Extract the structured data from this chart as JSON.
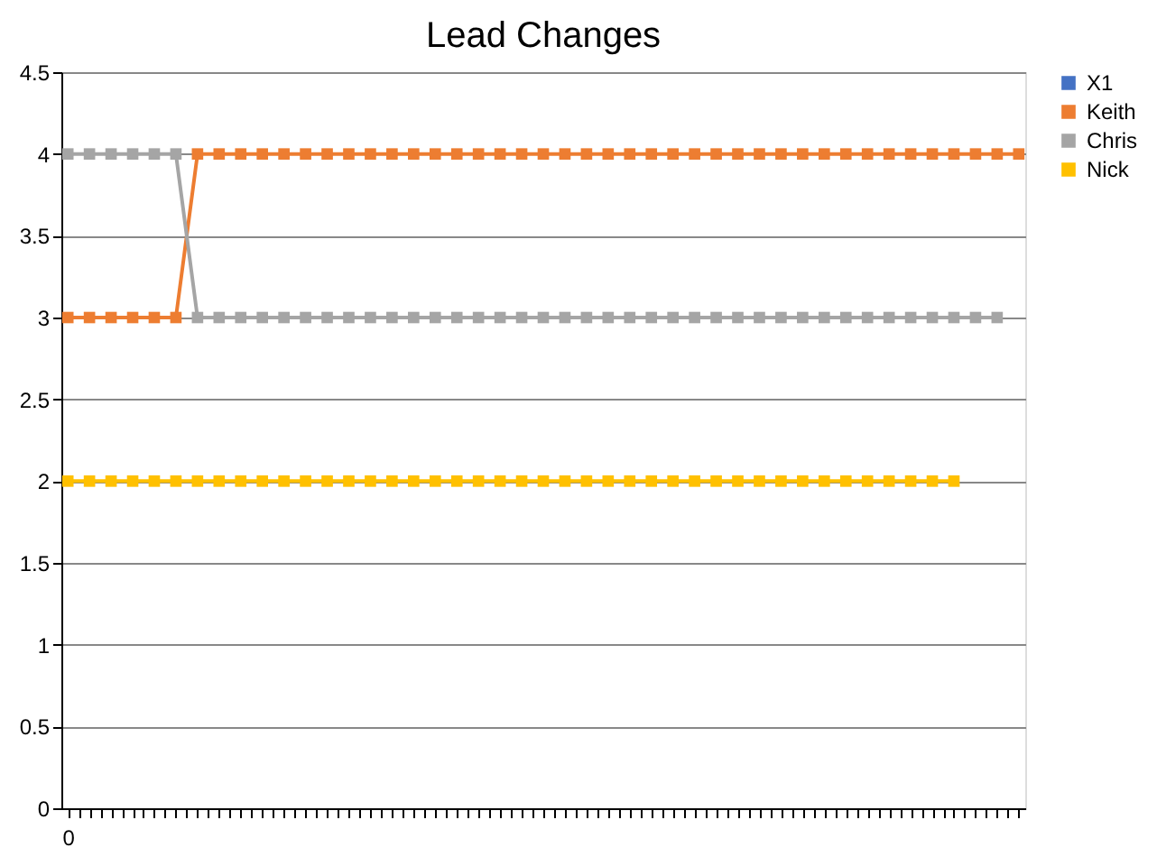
{
  "chart_data": {
    "type": "line",
    "title": "Lead Changes",
    "categories": [
      "0",
      null,
      null,
      null,
      null,
      null,
      null,
      null,
      null,
      null,
      null,
      null,
      null,
      null,
      null,
      null,
      null,
      null,
      null,
      null,
      null,
      null,
      null,
      null,
      null,
      null,
      null,
      null,
      null,
      null,
      null,
      null,
      null,
      null,
      null,
      null,
      null,
      null,
      null,
      null,
      null,
      null,
      null,
      null,
      null
    ],
    "series": [
      {
        "name": "X1",
        "color": "#4472c4",
        "values": [
          null,
          null,
          null,
          null,
          null,
          null,
          null,
          null,
          null,
          null,
          null,
          null,
          null,
          null,
          null,
          null,
          null,
          null,
          null,
          null,
          null,
          null,
          null,
          null,
          null,
          null,
          null,
          null,
          null,
          null,
          null,
          null,
          null,
          null,
          null,
          null,
          null,
          null,
          null,
          null,
          null,
          null,
          null,
          null,
          null
        ]
      },
      {
        "name": "Keith",
        "color": "#ed7d31",
        "values": [
          3,
          3,
          3,
          3,
          3,
          3,
          4,
          4,
          4,
          4,
          4,
          4,
          4,
          4,
          4,
          4,
          4,
          4,
          4,
          4,
          4,
          4,
          4,
          4,
          4,
          4,
          4,
          4,
          4,
          4,
          4,
          4,
          4,
          4,
          4,
          4,
          4,
          4,
          4,
          4,
          4,
          4,
          4,
          4,
          4
        ]
      },
      {
        "name": "Chris",
        "color": "#a5a5a5",
        "values": [
          4,
          4,
          4,
          4,
          4,
          4,
          3,
          3,
          3,
          3,
          3,
          3,
          3,
          3,
          3,
          3,
          3,
          3,
          3,
          3,
          3,
          3,
          3,
          3,
          3,
          3,
          3,
          3,
          3,
          3,
          3,
          3,
          3,
          3,
          3,
          3,
          3,
          3,
          3,
          3,
          3,
          3,
          3,
          3,
          null
        ]
      },
      {
        "name": "Nick",
        "color": "#ffc000",
        "values": [
          2,
          2,
          2,
          2,
          2,
          2,
          2,
          2,
          2,
          2,
          2,
          2,
          2,
          2,
          2,
          2,
          2,
          2,
          2,
          2,
          2,
          2,
          2,
          2,
          2,
          2,
          2,
          2,
          2,
          2,
          2,
          2,
          2,
          2,
          2,
          2,
          2,
          2,
          2,
          2,
          2,
          2,
          null,
          null,
          null
        ]
      }
    ],
    "ylim": [
      0,
      4.5
    ],
    "yticks": [
      0,
      0.5,
      1,
      1.5,
      2,
      2.5,
      3,
      3.5,
      4,
      4.5
    ],
    "grid": "y",
    "legend": "right",
    "marker": "square",
    "line_style": "solid"
  }
}
